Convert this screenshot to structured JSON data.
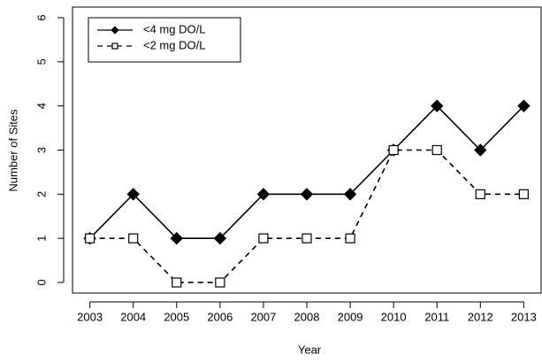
{
  "chart_data": {
    "type": "line",
    "x_label": "Year",
    "y_label": "Number of Sites",
    "x": [
      2003,
      2004,
      2005,
      2006,
      2007,
      2008,
      2009,
      2010,
      2011,
      2012,
      2013
    ],
    "series": [
      {
        "name": "<4 mg DO/L",
        "color": "#000000",
        "marker": "diamond",
        "linestyle": "solid",
        "values": [
          1,
          2,
          1,
          1,
          2,
          2,
          2,
          3,
          4,
          3,
          4
        ]
      },
      {
        "name": "<2 mg DO/L",
        "color": "#000000",
        "marker": "square",
        "linestyle": "dashed",
        "values": [
          1,
          1,
          0,
          0,
          1,
          1,
          1,
          3,
          3,
          2,
          2
        ]
      }
    ],
    "xlim": [
      2002.6,
      2013.4
    ],
    "xticks": [
      2003,
      2004,
      2005,
      2006,
      2007,
      2008,
      2009,
      2010,
      2011,
      2012,
      2013
    ],
    "ylim": [
      -0.24,
      6.24
    ],
    "yticks": [
      0,
      1,
      2,
      3,
      4,
      5,
      6
    ],
    "grid": false,
    "legend": "top-left"
  }
}
